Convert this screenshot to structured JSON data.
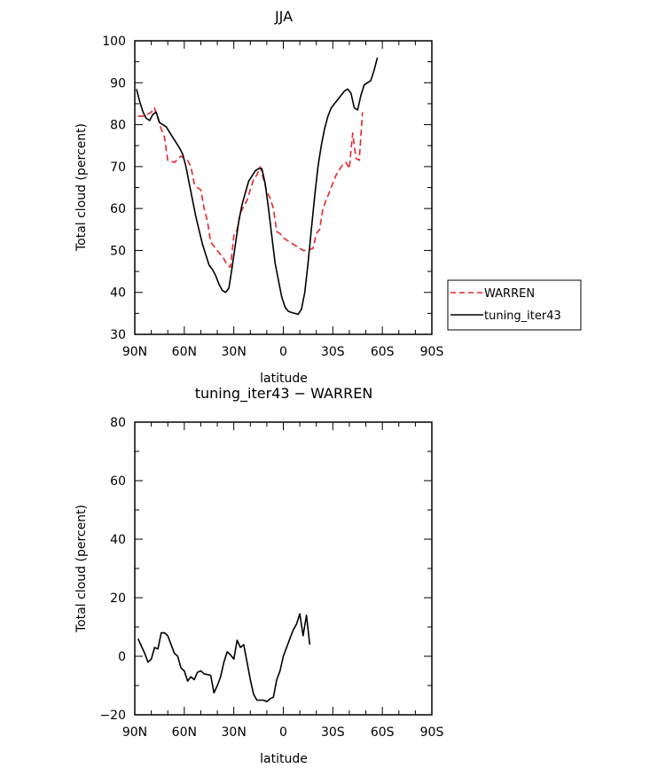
{
  "chart_data": [
    {
      "type": "line",
      "title": "JJA",
      "xlabel": "latitude",
      "ylabel": "Total cloud (percent)",
      "xlim": [
        -90,
        90
      ],
      "ylim": [
        30,
        100
      ],
      "xticks": [
        -90,
        -60,
        -30,
        0,
        30,
        60,
        90
      ],
      "xticklabels": [
        "90N",
        "60N",
        "30N",
        "0",
        "30S",
        "60S",
        "90S"
      ],
      "yticks": [
        30,
        40,
        50,
        60,
        70,
        80,
        90,
        100
      ],
      "yticklabels": [
        "30",
        "40",
        "50",
        "60",
        "70",
        "80",
        "90",
        "100"
      ],
      "legend": {
        "placement": "right"
      },
      "series": [
        {
          "name": "WARREN",
          "color": "#e8242a",
          "dash": "dashed",
          "points": [
            [
              -88,
              82
            ],
            [
              -84,
              82
            ],
            [
              -80,
              83
            ],
            [
              -78,
              84
            ],
            [
              -74,
              79
            ],
            [
              -72,
              77
            ],
            [
              -70,
              71.5
            ],
            [
              -66,
              71
            ],
            [
              -62,
              72.5
            ],
            [
              -58,
              71.5
            ],
            [
              -56,
              70
            ],
            [
              -54,
              66
            ],
            [
              -52,
              65
            ],
            [
              -50,
              64.5
            ],
            [
              -48,
              60
            ],
            [
              -46,
              57
            ],
            [
              -44,
              52
            ],
            [
              -42,
              51
            ],
            [
              -38,
              49
            ],
            [
              -36,
              48
            ],
            [
              -34,
              46.5
            ],
            [
              -32,
              46
            ],
            [
              -30,
              53.5
            ],
            [
              -28,
              55
            ],
            [
              -26,
              59
            ],
            [
              -24,
              60.5
            ],
            [
              -22,
              62
            ],
            [
              -18,
              67
            ],
            [
              -16,
              68
            ],
            [
              -14,
              70
            ],
            [
              -12,
              67
            ],
            [
              -10,
              64
            ],
            [
              -8,
              62.5
            ],
            [
              -6,
              60
            ],
            [
              -4,
              54.5
            ],
            [
              -2,
              54
            ],
            [
              0,
              53
            ],
            [
              4,
              52
            ],
            [
              8,
              51
            ],
            [
              12,
              50
            ],
            [
              14,
              50
            ],
            [
              18,
              50.5
            ],
            [
              20,
              54
            ],
            [
              22,
              55
            ],
            [
              24,
              60
            ],
            [
              28,
              64
            ],
            [
              30,
              66
            ],
            [
              32,
              68
            ],
            [
              36,
              70.5
            ],
            [
              38,
              71
            ],
            [
              40,
              69.5
            ],
            [
              42,
              78
            ],
            [
              44,
              72
            ],
            [
              46,
              71.5
            ],
            [
              48,
              83
            ]
          ]
        },
        {
          "name": "tuning_iter43",
          "color": "#000000",
          "dash": "solid",
          "points": [
            [
              -89,
              88.5
            ],
            [
              -87,
              85.5
            ],
            [
              -85,
              83
            ],
            [
              -83,
              81.5
            ],
            [
              -81,
              81
            ],
            [
              -79,
              82.5
            ],
            [
              -77,
              83
            ],
            [
              -75,
              80.5
            ],
            [
              -73,
              80
            ],
            [
              -71,
              79.5
            ],
            [
              -67,
              77
            ],
            [
              -63,
              74.5
            ],
            [
              -61,
              73
            ],
            [
              -59,
              70
            ],
            [
              -57,
              66
            ],
            [
              -53,
              58
            ],
            [
              -49,
              51.5
            ],
            [
              -45,
              46.5
            ],
            [
              -43,
              45.5
            ],
            [
              -41,
              44
            ],
            [
              -39,
              42
            ],
            [
              -37,
              40.5
            ],
            [
              -35,
              40
            ],
            [
              -33,
              41
            ],
            [
              -31,
              46
            ],
            [
              -29,
              51.5
            ],
            [
              -27,
              57
            ],
            [
              -25,
              61
            ],
            [
              -21,
              66.5
            ],
            [
              -17,
              69
            ],
            [
              -15,
              69.5
            ],
            [
              -13,
              69.5
            ],
            [
              -11,
              66
            ],
            [
              -9,
              60
            ],
            [
              -7,
              53.5
            ],
            [
              -5,
              47
            ],
            [
              -3,
              43
            ],
            [
              -1,
              39
            ],
            [
              1,
              36.5
            ],
            [
              3,
              35.5
            ],
            [
              5,
              35.2
            ],
            [
              7,
              35
            ],
            [
              9,
              34.8
            ],
            [
              11,
              36
            ],
            [
              13,
              40
            ],
            [
              15,
              47
            ],
            [
              17,
              55
            ],
            [
              19,
              63
            ],
            [
              21,
              70
            ],
            [
              23,
              75
            ],
            [
              25,
              79
            ],
            [
              27,
              82
            ],
            [
              29,
              84
            ],
            [
              31,
              85
            ],
            [
              33,
              86
            ],
            [
              35,
              87
            ],
            [
              37,
              88
            ],
            [
              39,
              88.5
            ],
            [
              41,
              87.5
            ],
            [
              43,
              84
            ],
            [
              45,
              83.5
            ],
            [
              47,
              87
            ],
            [
              49,
              89.5
            ],
            [
              51,
              90
            ],
            [
              53,
              90.5
            ],
            [
              55,
              93
            ],
            [
              57,
              96
            ]
          ]
        }
      ]
    },
    {
      "type": "line",
      "title": "tuning_iter43 − WARREN",
      "xlabel": "latitude",
      "ylabel": "Total cloud (percent)",
      "xlim": [
        -90,
        90
      ],
      "ylim": [
        -20,
        80
      ],
      "xticks": [
        -90,
        -60,
        -30,
        0,
        30,
        60,
        90
      ],
      "xticklabels": [
        "90N",
        "60N",
        "30N",
        "0",
        "30S",
        "60S",
        "90S"
      ],
      "yticks": [
        -20,
        0,
        20,
        40,
        60,
        80
      ],
      "yticklabels": [
        "−20",
        "0",
        "20",
        "40",
        "60",
        "80"
      ],
      "series": [
        {
          "color": "#000000",
          "dash": "solid",
          "points": [
            [
              -88,
              6
            ],
            [
              -86,
              3.5
            ],
            [
              -84,
              1
            ],
            [
              -82,
              -2
            ],
            [
              -80,
              -1
            ],
            [
              -78,
              3
            ],
            [
              -76,
              2.5
            ],
            [
              -74,
              8
            ],
            [
              -72,
              8
            ],
            [
              -70,
              7
            ],
            [
              -68,
              4
            ],
            [
              -66,
              1
            ],
            [
              -64,
              0
            ],
            [
              -62,
              -4
            ],
            [
              -60,
              -5
            ],
            [
              -58,
              -8.5
            ],
            [
              -56,
              -7
            ],
            [
              -54,
              -8
            ],
            [
              -52,
              -5.5
            ],
            [
              -50,
              -5
            ],
            [
              -48,
              -6
            ],
            [
              -44,
              -6.5
            ],
            [
              -42,
              -12.5
            ],
            [
              -40,
              -10
            ],
            [
              -38,
              -7
            ],
            [
              -36,
              -2
            ],
            [
              -34,
              1.5
            ],
            [
              -32,
              0.5
            ],
            [
              -30,
              -1
            ],
            [
              -28,
              5.5
            ],
            [
              -26,
              3
            ],
            [
              -24,
              4
            ],
            [
              -22,
              -2
            ],
            [
              -20,
              -8
            ],
            [
              -18,
              -13
            ],
            [
              -16,
              -15
            ],
            [
              -12,
              -15
            ],
            [
              -10,
              -15.5
            ],
            [
              -8,
              -14.5
            ],
            [
              -6,
              -14
            ],
            [
              -4,
              -8
            ],
            [
              -2,
              -5
            ],
            [
              0,
              0
            ],
            [
              2,
              3
            ],
            [
              4,
              6
            ],
            [
              6,
              9
            ],
            [
              8,
              11
            ],
            [
              10,
              14.5
            ],
            [
              12,
              7
            ],
            [
              14,
              14
            ],
            [
              16,
              4
            ]
          ]
        }
      ]
    }
  ]
}
